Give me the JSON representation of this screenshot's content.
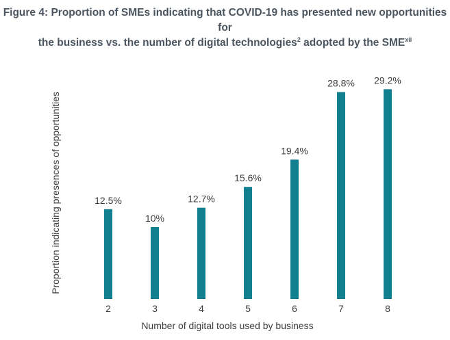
{
  "title": {
    "line1": "Figure 4: Proportion of SMEs indicating that COVID-19 has presented new opportunities for",
    "line2_text": "the business vs. the number of digital technologies",
    "line2_sup": "2",
    "line2_tail": " adopted by the SME",
    "line2_tail_sup": "xii"
  },
  "chart_data": {
    "type": "bar",
    "categories": [
      "2",
      "3",
      "4",
      "5",
      "6",
      "7",
      "8"
    ],
    "values": [
      12.5,
      10,
      12.7,
      15.6,
      19.4,
      28.8,
      29.2
    ],
    "value_labels": [
      "12.5%",
      "10%",
      "12.7%",
      "15.6%",
      "19.4%",
      "28.8%",
      "29.2%"
    ],
    "xlabel": "Number of digital tools used by business",
    "ylabel": "Proportion indicating presences of opportunities",
    "ylim": [
      0,
      30
    ],
    "grid": false,
    "bar_color": "#127f8e"
  }
}
